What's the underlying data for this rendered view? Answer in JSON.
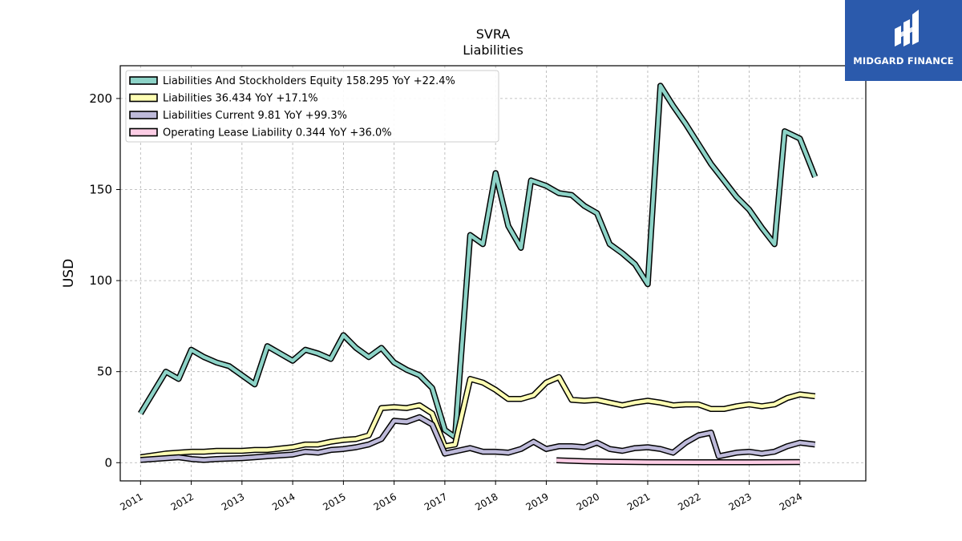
{
  "logo": {
    "text": "MIDGARD FINANCE",
    "color": "#2b5aac"
  },
  "chart_data": {
    "type": "line",
    "title": "SVRA",
    "subtitle": "Liabilities",
    "ylabel": "USD",
    "xlabel": "",
    "xlim": [
      2010.6,
      2025.3
    ],
    "ylim": [
      -10,
      218
    ],
    "yticks": [
      0,
      50,
      100,
      150,
      200
    ],
    "xticks": [
      2011,
      2012,
      2013,
      2014,
      2015,
      2016,
      2017,
      2018,
      2019,
      2020,
      2021,
      2022,
      2023,
      2024
    ],
    "grid": true,
    "legend_position": "top-left",
    "series": [
      {
        "name": "Liabilities And Stockholders Equity",
        "legend_label": "Liabilities And Stockholders Equity  158.295 YoY +22.4%",
        "color": "#8dd3c7",
        "points": [
          [
            2011.0,
            27
          ],
          [
            2011.5,
            50
          ],
          [
            2011.75,
            46
          ],
          [
            2012.0,
            62
          ],
          [
            2012.25,
            58
          ],
          [
            2012.5,
            55
          ],
          [
            2012.75,
            53
          ],
          [
            2013.0,
            48
          ],
          [
            2013.25,
            43
          ],
          [
            2013.5,
            64
          ],
          [
            2013.75,
            60
          ],
          [
            2014.0,
            56
          ],
          [
            2014.25,
            62
          ],
          [
            2014.5,
            60
          ],
          [
            2014.75,
            57
          ],
          [
            2015.0,
            70
          ],
          [
            2015.25,
            63
          ],
          [
            2015.5,
            58
          ],
          [
            2015.75,
            63
          ],
          [
            2016.0,
            55
          ],
          [
            2016.25,
            51
          ],
          [
            2016.5,
            48
          ],
          [
            2016.75,
            41
          ],
          [
            2017.0,
            18
          ],
          [
            2017.2,
            14
          ],
          [
            2017.5,
            125
          ],
          [
            2017.75,
            120
          ],
          [
            2018.0,
            159
          ],
          [
            2018.25,
            130
          ],
          [
            2018.5,
            118
          ],
          [
            2018.7,
            155
          ],
          [
            2019.0,
            152
          ],
          [
            2019.25,
            148
          ],
          [
            2019.5,
            147
          ],
          [
            2019.75,
            141
          ],
          [
            2020.0,
            137
          ],
          [
            2020.25,
            120
          ],
          [
            2020.5,
            115
          ],
          [
            2020.75,
            109
          ],
          [
            2021.0,
            98
          ],
          [
            2021.25,
            207
          ],
          [
            2021.5,
            196
          ],
          [
            2021.75,
            186
          ],
          [
            2022.0,
            175
          ],
          [
            2022.25,
            164
          ],
          [
            2022.5,
            155
          ],
          [
            2022.75,
            146
          ],
          [
            2023.0,
            139
          ],
          [
            2023.25,
            129
          ],
          [
            2023.5,
            120
          ],
          [
            2023.7,
            182
          ],
          [
            2024.0,
            178
          ],
          [
            2024.3,
            157
          ]
        ]
      },
      {
        "name": "Liabilities",
        "legend_label": "Liabilities  36.434 YoY +17.1%",
        "color": "#ffffb3",
        "points": [
          [
            2011.0,
            3
          ],
          [
            2011.5,
            5
          ],
          [
            2012.0,
            6
          ],
          [
            2012.25,
            6
          ],
          [
            2012.5,
            6.5
          ],
          [
            2013.0,
            6.5
          ],
          [
            2013.25,
            7
          ],
          [
            2013.5,
            7
          ],
          [
            2014.0,
            8.5
          ],
          [
            2014.25,
            10
          ],
          [
            2014.5,
            10
          ],
          [
            2014.75,
            11.5
          ],
          [
            2015.0,
            12.5
          ],
          [
            2015.25,
            13
          ],
          [
            2015.5,
            15
          ],
          [
            2015.75,
            30
          ],
          [
            2016.0,
            30.5
          ],
          [
            2016.25,
            30
          ],
          [
            2016.5,
            31.5
          ],
          [
            2016.75,
            27
          ],
          [
            2017.0,
            9
          ],
          [
            2017.2,
            10
          ],
          [
            2017.5,
            46
          ],
          [
            2017.75,
            44
          ],
          [
            2018.0,
            40
          ],
          [
            2018.25,
            35
          ],
          [
            2018.5,
            35
          ],
          [
            2018.75,
            37
          ],
          [
            2019.0,
            44
          ],
          [
            2019.25,
            47
          ],
          [
            2019.5,
            34.5
          ],
          [
            2019.75,
            34
          ],
          [
            2020.0,
            34.5
          ],
          [
            2020.25,
            33
          ],
          [
            2020.5,
            31.5
          ],
          [
            2020.75,
            33
          ],
          [
            2021.0,
            34
          ],
          [
            2021.25,
            33
          ],
          [
            2021.5,
            31.5
          ],
          [
            2021.75,
            32
          ],
          [
            2022.0,
            32
          ],
          [
            2022.25,
            29.5
          ],
          [
            2022.5,
            29.5
          ],
          [
            2022.75,
            31
          ],
          [
            2023.0,
            32
          ],
          [
            2023.25,
            31
          ],
          [
            2023.5,
            32
          ],
          [
            2023.75,
            35.5
          ],
          [
            2024.0,
            37.5
          ],
          [
            2024.3,
            36.5
          ]
        ]
      },
      {
        "name": "Liabilities Current",
        "legend_label": "Liabilities Current  9.81 YoY +99.3%",
        "color": "#bebada",
        "points": [
          [
            2011.0,
            1.5
          ],
          [
            2011.5,
            2.5
          ],
          [
            2011.75,
            3
          ],
          [
            2012.0,
            2
          ],
          [
            2012.25,
            1.5
          ],
          [
            2012.5,
            2
          ],
          [
            2013.0,
            2.5
          ],
          [
            2013.25,
            3
          ],
          [
            2013.5,
            3.5
          ],
          [
            2014.0,
            4.5
          ],
          [
            2014.25,
            6
          ],
          [
            2014.5,
            5.5
          ],
          [
            2014.75,
            7
          ],
          [
            2015.0,
            7.5
          ],
          [
            2015.25,
            8.5
          ],
          [
            2015.5,
            10
          ],
          [
            2015.75,
            13
          ],
          [
            2016.0,
            23
          ],
          [
            2016.25,
            22.5
          ],
          [
            2016.5,
            25
          ],
          [
            2016.75,
            21
          ],
          [
            2017.0,
            5
          ],
          [
            2017.25,
            6.5
          ],
          [
            2017.5,
            8
          ],
          [
            2017.75,
            6
          ],
          [
            2018.0,
            6
          ],
          [
            2018.25,
            5.5
          ],
          [
            2018.5,
            7.5
          ],
          [
            2018.75,
            11.5
          ],
          [
            2019.0,
            7.5
          ],
          [
            2019.25,
            9
          ],
          [
            2019.5,
            9
          ],
          [
            2019.75,
            8.5
          ],
          [
            2020.0,
            11
          ],
          [
            2020.25,
            7.5
          ],
          [
            2020.5,
            6.5
          ],
          [
            2020.75,
            8
          ],
          [
            2021.0,
            8.5
          ],
          [
            2021.25,
            7.5
          ],
          [
            2021.5,
            5.5
          ],
          [
            2021.75,
            11
          ],
          [
            2022.0,
            15
          ],
          [
            2022.25,
            16.5
          ],
          [
            2022.4,
            3.5
          ],
          [
            2022.75,
            5.5
          ],
          [
            2023.0,
            6
          ],
          [
            2023.25,
            5
          ],
          [
            2023.5,
            6
          ],
          [
            2023.75,
            9
          ],
          [
            2024.0,
            11
          ],
          [
            2024.3,
            10
          ]
        ]
      },
      {
        "name": "Operating Lease Liability",
        "legend_label": "Operating Lease Liability  0.344 YoY +36.0%",
        "color": "#fccde5",
        "points": [
          [
            2019.2,
            1.3
          ],
          [
            2019.75,
            0.8
          ],
          [
            2020.25,
            0.5
          ],
          [
            2021.0,
            0.3
          ],
          [
            2022.0,
            0.25
          ],
          [
            2023.0,
            0.25
          ],
          [
            2024.0,
            0.35
          ]
        ]
      }
    ]
  }
}
